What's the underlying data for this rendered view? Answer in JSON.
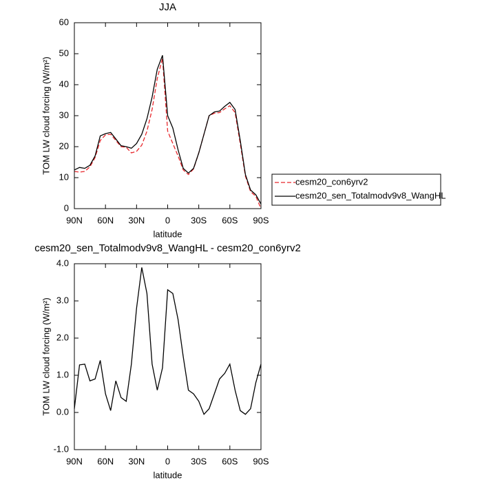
{
  "chart_data": [
    {
      "type": "line",
      "title": "JJA",
      "xlabel": "latitude",
      "ylabel": "TOM LW cloud forcing (W/m²)",
      "x": [
        90,
        85,
        80,
        75,
        70,
        65,
        60,
        55,
        50,
        45,
        40,
        35,
        30,
        25,
        20,
        15,
        10,
        5,
        0,
        -5,
        -10,
        -15,
        -20,
        -25,
        -30,
        -35,
        -40,
        -45,
        -50,
        -55,
        -60,
        -65,
        -70,
        -75,
        -80,
        -85,
        -90
      ],
      "series": [
        {
          "name": "cesm20_con6yrv2",
          "color": "#e8262a",
          "style": "dashed",
          "values": [
            12,
            11.8,
            12,
            13.5,
            16.5,
            22,
            23.8,
            24,
            22,
            20,
            19.8,
            18,
            18.5,
            20.5,
            25,
            32,
            42,
            48.5,
            25,
            21,
            17,
            12.5,
            11,
            12.8,
            18,
            24,
            30,
            30.8,
            31,
            32.2,
            33.2,
            31,
            21,
            10.5,
            5.5,
            4,
            0
          ]
        },
        {
          "name": "cesm20_sen_Totalmodv9v8_WangHL",
          "color": "#000000",
          "style": "solid",
          "values": [
            12.5,
            13.3,
            13,
            14,
            17,
            23.5,
            24.2,
            24.6,
            22.5,
            20.3,
            20,
            19.5,
            21,
            24,
            29,
            36,
            45,
            49.5,
            30,
            26,
            19,
            13,
            11.5,
            13,
            18,
            24,
            30,
            31.2,
            31.5,
            33,
            34.3,
            32,
            22,
            11,
            6,
            4.5,
            1.5
          ]
        }
      ],
      "xlim": [
        90,
        -90
      ],
      "xticks": [
        {
          "value": 90,
          "label": "90N"
        },
        {
          "value": 60,
          "label": "60N"
        },
        {
          "value": 30,
          "label": "30N"
        },
        0,
        {
          "value": -30,
          "label": "30S"
        },
        {
          "value": -60,
          "label": "60S"
        },
        {
          "value": -90,
          "label": "90S"
        }
      ],
      "ylim": [
        0,
        60
      ],
      "yticks": [
        0,
        10,
        20,
        30,
        40,
        50,
        60
      ],
      "legend": "right"
    },
    {
      "type": "line",
      "title": "cesm20_sen_Totalmodv9v8_WangHL - cesm20_con6yrv2",
      "xlabel": "latitude",
      "ylabel": "TOM LW cloud forcing (W/m²)",
      "x": [
        90,
        85,
        80,
        75,
        70,
        65,
        60,
        55,
        50,
        45,
        40,
        35,
        30,
        25,
        20,
        15,
        10,
        5,
        0,
        -5,
        -10,
        -15,
        -20,
        -25,
        -30,
        -35,
        -40,
        -45,
        -50,
        -55,
        -60,
        -65,
        -70,
        -75,
        -80,
        -85,
        -90
      ],
      "values": [
        0.1,
        1.28,
        1.3,
        0.85,
        0.9,
        1.4,
        0.5,
        0.05,
        0.85,
        0.4,
        0.3,
        1.3,
        2.8,
        3.9,
        3.2,
        1.3,
        0.6,
        1.2,
        3.3,
        3.2,
        2.5,
        1.5,
        0.6,
        0.5,
        0.3,
        -0.05,
        0.1,
        0.5,
        0.9,
        1.05,
        1.3,
        0.6,
        0.05,
        -0.05,
        0.1,
        0.8,
        1.3
      ],
      "color": "#000000",
      "xlim": [
        90,
        -90
      ],
      "xticks": [
        {
          "value": 90,
          "label": "90N"
        },
        {
          "value": 60,
          "label": "60N"
        },
        {
          "value": 30,
          "label": "30N"
        },
        0,
        {
          "value": -30,
          "label": "30S"
        },
        {
          "value": -60,
          "label": "60S"
        },
        {
          "value": -90,
          "label": "90S"
        }
      ],
      "ylim": [
        -1,
        4
      ],
      "yticks": [
        {
          "value": -1,
          "label": "-1.0"
        },
        {
          "value": 0,
          "label": "0.0"
        },
        {
          "value": 1,
          "label": "1.0"
        },
        {
          "value": 2,
          "label": "2.0"
        },
        {
          "value": 3,
          "label": "3.0"
        },
        {
          "value": 4,
          "label": "4.0"
        }
      ]
    }
  ]
}
